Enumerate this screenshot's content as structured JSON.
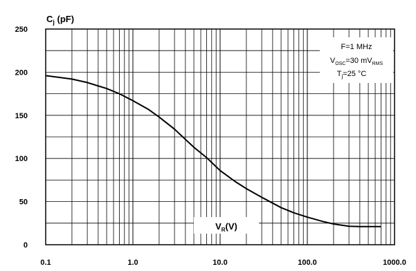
{
  "chart_data": {
    "type": "line",
    "x_scale": "log",
    "xlim": [
      0.1,
      1000.0
    ],
    "ylim": [
      0,
      250
    ],
    "grid": true,
    "x_ticks": [
      "0.1",
      "1.0",
      "10.0",
      "100.0",
      "1000.0"
    ],
    "y_ticks": [
      "0",
      "50",
      "100",
      "150",
      "200",
      "250"
    ],
    "ylabel": {
      "main": "C",
      "sub": "j",
      "unit": " (pF)"
    },
    "xlabel": {
      "main": "V",
      "sub": "R",
      "unit": "(V)"
    },
    "annotations": {
      "freq": "F=1 MHz",
      "vosc_main": "V",
      "vosc_sub": "OSC",
      "vosc_mid": "=30 mV",
      "vosc_sub2": "RMS",
      "tj_main": "T",
      "tj_sub": "j",
      "tj_val": "=25 °C"
    },
    "series": [
      {
        "x": [
          0.1,
          0.2,
          0.3,
          0.5,
          0.7,
          1.0,
          1.5,
          2,
          3,
          4,
          5,
          7,
          10,
          15,
          20,
          30,
          50,
          70,
          100,
          150,
          200,
          300,
          400,
          700
        ],
        "y": [
          196,
          192,
          188,
          181,
          175,
          167,
          157,
          148,
          134,
          122,
          113,
          101,
          86,
          73,
          65,
          55,
          43,
          37,
          32,
          27,
          24,
          21.5,
          21,
          21
        ]
      }
    ]
  }
}
